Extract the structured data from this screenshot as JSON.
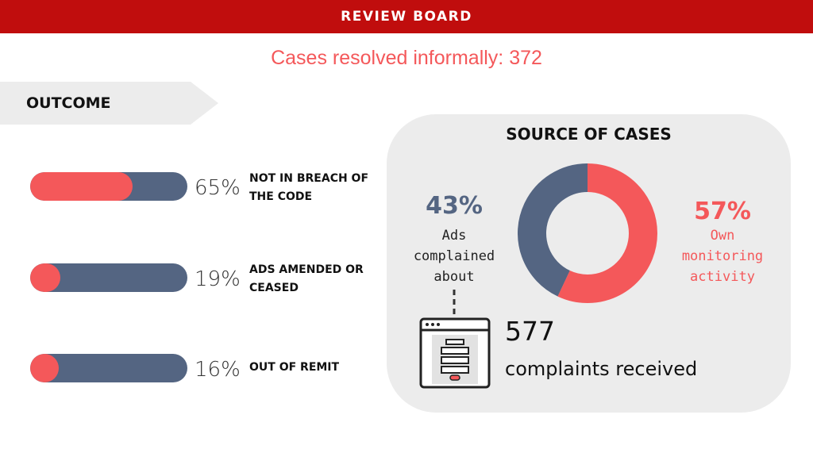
{
  "header": {
    "title": "REVIEW BOARD"
  },
  "summary": {
    "resolved_text": "Cases resolved informally: 372"
  },
  "outcome": {
    "heading": "OUTCOME",
    "items": [
      {
        "pct": "65%",
        "value": 0.65,
        "label_line1": "NOT IN BREACH OF",
        "label_line2": "THE CODE"
      },
      {
        "pct": "19%",
        "value": 0.19,
        "label_line1": "ADS AMENDED OR",
        "label_line2": "CEASED"
      },
      {
        "pct": "16%",
        "value": 0.16,
        "label_line1": "OUT OF REMIT",
        "label_line2": ""
      }
    ]
  },
  "source": {
    "title": "SOURCE OF CASES",
    "left": {
      "pct": "43%",
      "value": 0.43,
      "line1": "Ads",
      "line2": "complained",
      "line3": "about"
    },
    "right": {
      "pct": "57%",
      "value": 0.57,
      "line1": "Own",
      "line2": "monitoring",
      "line3": "activity"
    },
    "complaints": {
      "count": "577",
      "label": "complaints received"
    }
  },
  "colors": {
    "banner": "#c00d0d",
    "accent": "#f4585a",
    "slate": "#546582",
    "panel": "#ececec"
  },
  "icons": {
    "complaint_window": "browser-window-form-icon"
  }
}
